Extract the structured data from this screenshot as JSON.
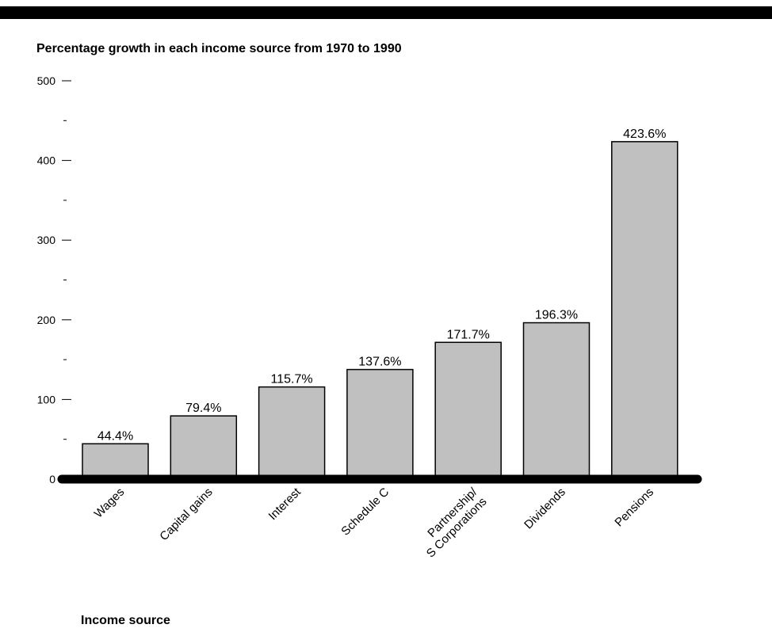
{
  "chart_data": {
    "type": "bar",
    "title": "Percentage growth in each income source from 1970 to 1990",
    "xlabel": "Income source",
    "ylabel": "",
    "ylim": [
      0,
      500
    ],
    "yticks": [
      "0",
      "100",
      "200",
      "300",
      "400",
      "500"
    ],
    "categories": [
      "Wages",
      "Capital gains",
      "Interest",
      "Schedule C",
      "Partnership/\nS Corporations",
      "Dividends",
      "Pensions"
    ],
    "values": [
      44.4,
      79.4,
      115.7,
      137.6,
      171.7,
      196.3,
      423.6
    ],
    "value_labels": [
      "44.4%",
      "79.4%",
      "115.7%",
      "137.6%",
      "171.7%",
      "196.3%",
      "423.6%"
    ],
    "bar_color": "#c0c0c0",
    "grid": false,
    "legend": "none"
  }
}
